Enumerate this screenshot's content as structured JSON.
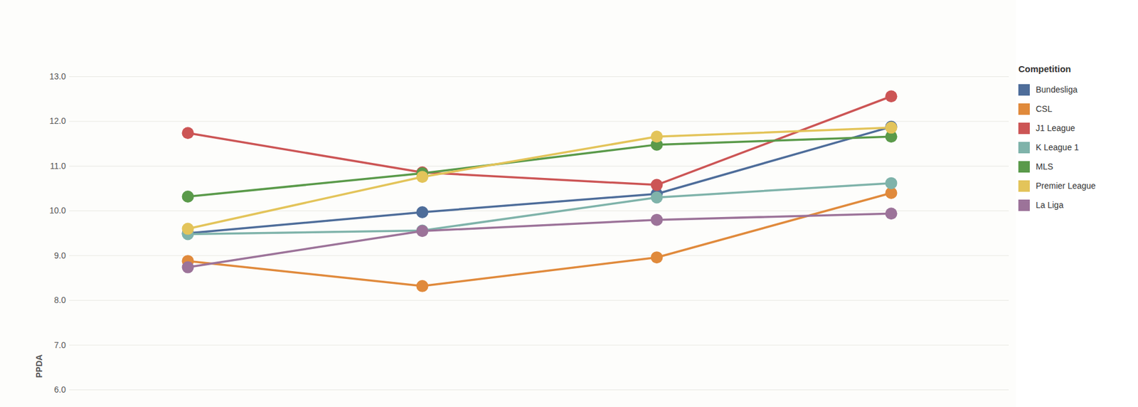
{
  "chart_data": {
    "type": "line",
    "y_label": "PPDA",
    "legend_title": "Competition",
    "legend": "top-right",
    "categories": [
      null,
      null,
      null,
      null
    ],
    "ylim": [
      6,
      13
    ],
    "yticks": [
      6,
      7,
      8,
      9,
      10,
      11,
      12,
      13
    ],
    "grid": true,
    "tick_labels": "y",
    "marker": "circle",
    "series": [
      {
        "name": "Bundesliga",
        "color": "#4e6d9a",
        "values": [
          9.5,
          9.97,
          10.38,
          11.88
        ]
      },
      {
        "name": "CSL",
        "color": "#e08a3c",
        "values": [
          8.88,
          8.32,
          8.96,
          10.4
        ]
      },
      {
        "name": "J1 League",
        "color": "#cc5555",
        "values": [
          11.74,
          10.86,
          10.58,
          12.56
        ]
      },
      {
        "name": "K League 1",
        "color": "#7fb3aa",
        "values": [
          9.48,
          9.56,
          10.3,
          10.62
        ]
      },
      {
        "name": "MLS",
        "color": "#5a9a4a",
        "values": [
          10.32,
          10.84,
          11.48,
          11.66
        ]
      },
      {
        "name": "Premier League",
        "color": "#e3c45a",
        "values": [
          9.6,
          10.76,
          11.66,
          11.86
        ]
      },
      {
        "name": "La Liga",
        "color": "#9c7399",
        "values": [
          8.74,
          9.55,
          9.8,
          9.94
        ]
      }
    ]
  }
}
